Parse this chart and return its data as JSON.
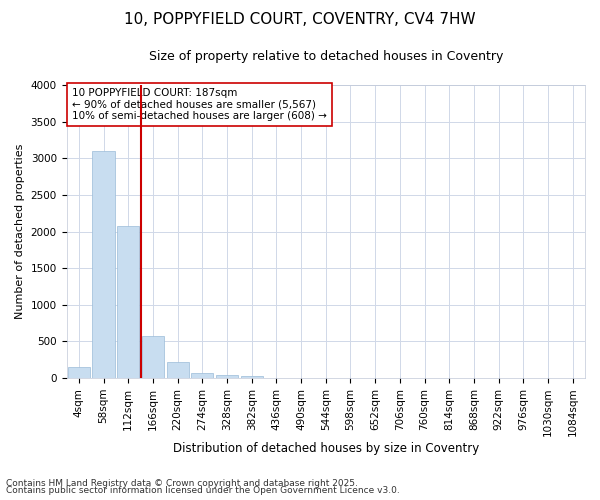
{
  "title_line1": "10, POPPYFIELD COURT, COVENTRY, CV4 7HW",
  "title_line2": "Size of property relative to detached houses in Coventry",
  "xlabel": "Distribution of detached houses by size in Coventry",
  "ylabel": "Number of detached properties",
  "categories": [
    "4sqm",
    "58sqm",
    "112sqm",
    "166sqm",
    "220sqm",
    "274sqm",
    "328sqm",
    "382sqm",
    "436sqm",
    "490sqm",
    "544sqm",
    "598sqm",
    "652sqm",
    "706sqm",
    "760sqm",
    "814sqm",
    "868sqm",
    "922sqm",
    "976sqm",
    "1030sqm",
    "1084sqm"
  ],
  "values": [
    150,
    3100,
    2080,
    580,
    220,
    75,
    45,
    30,
    0,
    0,
    0,
    0,
    0,
    0,
    0,
    0,
    0,
    0,
    0,
    0,
    0
  ],
  "bar_color": "#c8ddf0",
  "bar_edgecolor": "#9bbcd8",
  "vline_color": "#cc0000",
  "vline_x_index": 3,
  "annotation_text": "10 POPPYFIELD COURT: 187sqm\n← 90% of detached houses are smaller (5,567)\n10% of semi-detached houses are larger (608) →",
  "annotation_box_edgecolor": "#cc0000",
  "annotation_box_facecolor": "#ffffff",
  "ylim": [
    0,
    4000
  ],
  "yticks": [
    0,
    500,
    1000,
    1500,
    2000,
    2500,
    3000,
    3500,
    4000
  ],
  "grid_color": "#d0d8e8",
  "plot_bg_color": "#ffffff",
  "fig_bg_color": "#ffffff",
  "footer_line1": "Contains HM Land Registry data © Crown copyright and database right 2025.",
  "footer_line2": "Contains public sector information licensed under the Open Government Licence v3.0.",
  "title_fontsize": 11,
  "subtitle_fontsize": 9,
  "tick_fontsize": 7.5,
  "ylabel_fontsize": 8,
  "xlabel_fontsize": 8.5,
  "annotation_fontsize": 7.5,
  "footer_fontsize": 6.5
}
